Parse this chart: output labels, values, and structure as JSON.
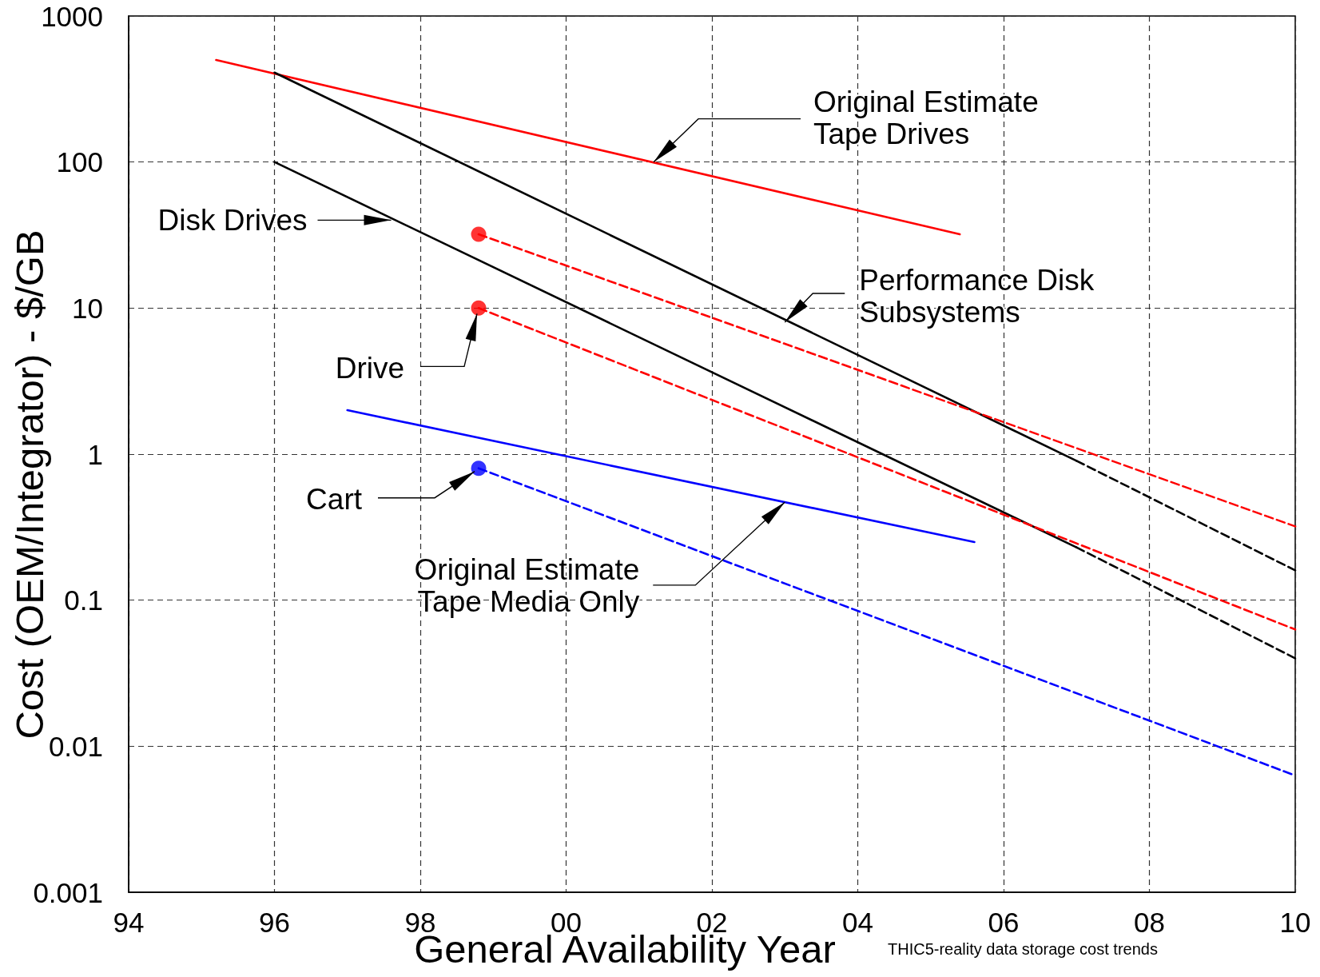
{
  "chart_data": {
    "type": "line",
    "xlabel": "General Availability Year",
    "ylabel": "Cost (OEM/Integrator) - $/GB",
    "xlim": [
      1994,
      2010
    ],
    "xticks": [
      {
        "value": 1994,
        "label": "94"
      },
      {
        "value": 1996,
        "label": "96"
      },
      {
        "value": 1998,
        "label": "98"
      },
      {
        "value": 2000,
        "label": "00"
      },
      {
        "value": 2002,
        "label": "02"
      },
      {
        "value": 2004,
        "label": "04"
      },
      {
        "value": 2006,
        "label": "06"
      },
      {
        "value": 2008,
        "label": "08"
      },
      {
        "value": 2010,
        "label": "10"
      }
    ],
    "ylim": [
      0.001,
      1000
    ],
    "yticks": [
      0.001,
      0.01,
      0.1,
      1,
      10,
      100,
      1000
    ],
    "log": true,
    "grid": true,
    "series": [
      {
        "type": "line",
        "color": "#ff0000",
        "line_style": "solid",
        "marker": "none",
        "x": [
          1995.2,
          2005.4
        ],
        "values": [
          500,
          32
        ]
      },
      {
        "type": "line",
        "color": "#000000",
        "line_style": "solid",
        "marker": "none",
        "x": [
          1996,
          2007
        ],
        "values": [
          410,
          0.9
        ]
      },
      {
        "type": "line",
        "color": "#000000",
        "line_style": "dashed",
        "marker": "none",
        "x": [
          2007,
          2010
        ],
        "values": [
          0.9,
          0.16
        ]
      },
      {
        "type": "line",
        "color": "#000000",
        "line_style": "solid",
        "marker": "none",
        "x": [
          1996,
          2007
        ],
        "values": [
          100,
          0.23
        ]
      },
      {
        "type": "line",
        "color": "#000000",
        "line_style": "dashed",
        "marker": "none",
        "x": [
          2007,
          2010
        ],
        "values": [
          0.23,
          0.04
        ]
      },
      {
        "type": "line",
        "color": "#ff0000",
        "line_style": "dashed",
        "marker": "none",
        "x": [
          1998.8,
          2010
        ],
        "values": [
          32,
          0.32
        ]
      },
      {
        "type": "line",
        "color": "#ff0000",
        "line_style": "dashed",
        "marker": "none",
        "x": [
          1998.8,
          2010
        ],
        "values": [
          10,
          0.063
        ]
      },
      {
        "type": "line",
        "color": "#0000ff",
        "line_style": "solid",
        "marker": "none",
        "x": [
          1997,
          2005.6
        ],
        "values": [
          2,
          0.25
        ]
      },
      {
        "type": "line",
        "color": "#0000ff",
        "line_style": "dashed",
        "marker": "none",
        "x": [
          1998.8,
          2010
        ],
        "values": [
          0.8,
          0.0063
        ]
      },
      {
        "type": "scatter",
        "marker": "circle",
        "colors": [
          "#ff0000",
          "#ff0000",
          "#0000ff"
        ],
        "x": [
          1998.8,
          1998.8,
          1998.8
        ],
        "values": [
          32,
          10,
          0.8
        ]
      }
    ],
    "annotations": [
      {
        "text": "Original Estimate\nTape Drives",
        "x": 2001.2,
        "y": 100
      },
      {
        "text": "Disk Drives",
        "x": 1997.6,
        "y": 40
      },
      {
        "text": "Performance Disk\nSubsystems",
        "x": 2003,
        "y": 8
      },
      {
        "text": "Drive",
        "x": 1998.8,
        "y": 10
      },
      {
        "text": "Cart",
        "x": 1998.8,
        "y": 0.8
      },
      {
        "text": "Original Estimate\nTape Media Only",
        "x": 2003,
        "y": 0.47
      },
      "THIC5-reality data storage cost trends"
    ]
  }
}
